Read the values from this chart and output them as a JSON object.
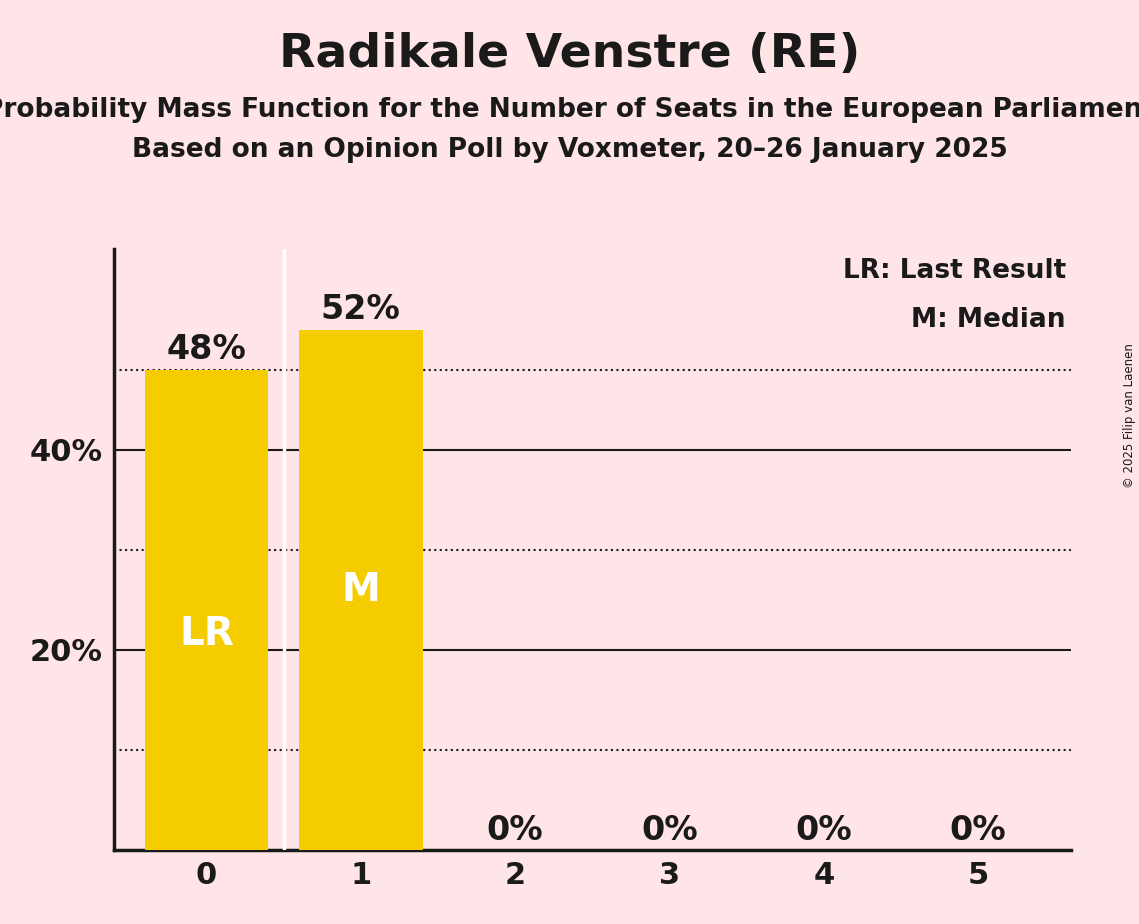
{
  "title": "Radikale Venstre (RE)",
  "subtitle1": "Probability Mass Function for the Number of Seats in the European Parliament",
  "subtitle2": "Based on an Opinion Poll by Voxmeter, 20–26 January 2025",
  "copyright": "© 2025 Filip van Laenen",
  "categories": [
    0,
    1,
    2,
    3,
    4,
    5
  ],
  "values": [
    0.48,
    0.52,
    0.0,
    0.0,
    0.0,
    0.0
  ],
  "bar_color": "#F5CC00",
  "bar_labels": [
    "48%",
    "52%",
    "0%",
    "0%",
    "0%",
    "0%"
  ],
  "lr_value": 0.48,
  "median_value": 0.52,
  "lr_label": "LR",
  "median_label": "M",
  "legend_lr": "LR: Last Result",
  "legend_m": "M: Median",
  "background_color": "#FFE4E8",
  "ylim": [
    0,
    0.6
  ],
  "title_fontsize": 34,
  "subtitle_fontsize": 19,
  "tick_fontsize": 22,
  "bar_label_fontsize": 24,
  "inside_label_fontsize": 28,
  "legend_fontsize": 19
}
